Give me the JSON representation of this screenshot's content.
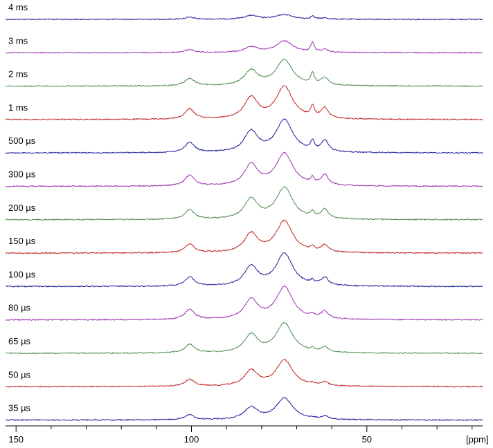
{
  "chart_data": {
    "type": "line",
    "title": "",
    "xlabel": "[ppm]",
    "ylabel": "",
    "x_reversed": true,
    "xlim": [
      153,
      17
    ],
    "x_ticks": [
      150,
      100,
      50
    ],
    "x_tick_labels": [
      "150",
      "100",
      "50"
    ],
    "peak_positions_ppm": [
      100.5,
      83.0,
      73.5,
      65.5,
      62.0
    ],
    "grid": false,
    "legend": "none",
    "series": [
      {
        "name": "4 ms",
        "color": "#1a1a9c",
        "peak_heights": [
          0.12,
          0.22,
          0.28,
          0.18,
          0.07
        ]
      },
      {
        "name": "3 ms",
        "color": "#9b2fb0",
        "peak_heights": [
          0.18,
          0.32,
          0.7,
          0.55,
          0.15
        ]
      },
      {
        "name": "2 ms",
        "color": "#4e8a4e",
        "peak_heights": [
          0.45,
          0.9,
          1.55,
          0.65,
          0.45
        ]
      },
      {
        "name": "1 ms",
        "color": "#c02020",
        "peak_heights": [
          0.62,
          1.28,
          1.95,
          0.65,
          0.62
        ]
      },
      {
        "name": "500 µs",
        "color": "#1a1a9c",
        "peak_heights": [
          0.62,
          1.25,
          1.95,
          0.55,
          0.68
        ]
      },
      {
        "name": "300 µs",
        "color": "#9b2fb0",
        "peak_heights": [
          0.65,
          1.25,
          1.95,
          0.35,
          0.6
        ]
      },
      {
        "name": "200 µs",
        "color": "#4e8a4e",
        "peak_heights": [
          0.58,
          1.2,
          1.9,
          0.3,
          0.55
        ]
      },
      {
        "name": "150 µs",
        "color": "#c02020",
        "peak_heights": [
          0.52,
          1.12,
          1.9,
          0.25,
          0.4
        ]
      },
      {
        "name": "100 µs",
        "color": "#1a1a9c",
        "peak_heights": [
          0.55,
          1.15,
          1.95,
          0.2,
          0.45
        ]
      },
      {
        "name": "80 µs",
        "color": "#9b2fb0",
        "peak_heights": [
          0.62,
          1.15,
          1.95,
          0.18,
          0.45
        ]
      },
      {
        "name": "65 µs",
        "color": "#4e8a4e",
        "peak_heights": [
          0.52,
          1.08,
          1.78,
          0.15,
          0.3
        ]
      },
      {
        "name": "50 µs",
        "color": "#c02020",
        "peak_heights": [
          0.42,
          0.92,
          1.58,
          0.1,
          0.22
        ]
      },
      {
        "name": "35 µs",
        "color": "#1a1a9c",
        "peak_heights": [
          0.3,
          0.72,
          1.3,
          0.06,
          0.18
        ]
      }
    ]
  }
}
